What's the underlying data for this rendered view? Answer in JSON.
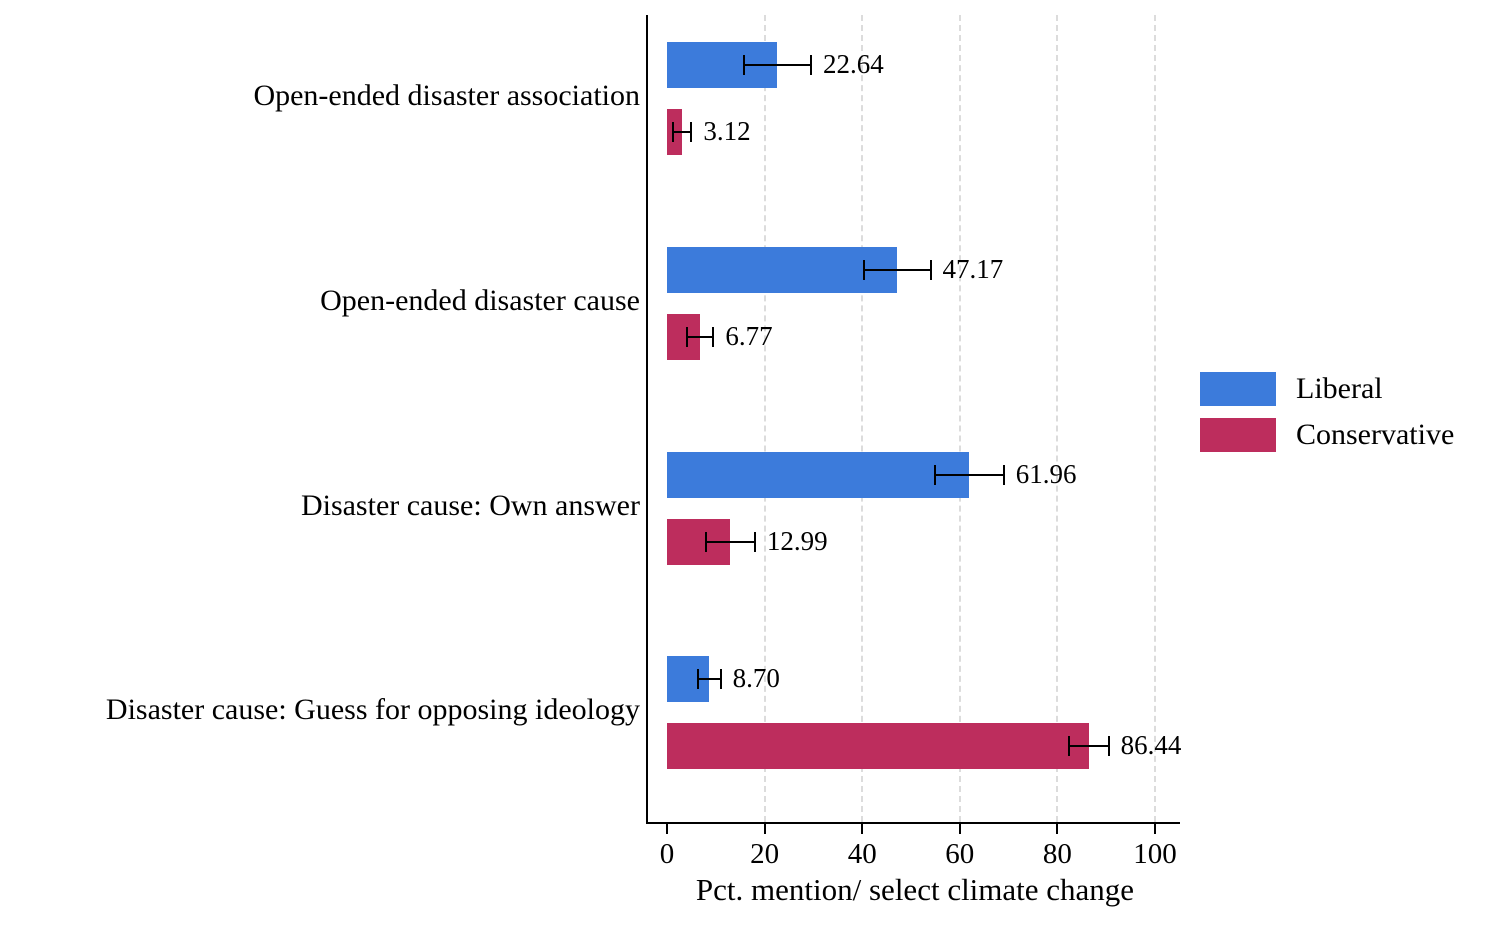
{
  "chart_data": {
    "type": "bar",
    "orientation": "horizontal",
    "title": "",
    "xlabel": "Pct. mention/ select climate change",
    "ylabel": "",
    "xlim": [
      0,
      105
    ],
    "x_ticks": [
      0,
      20,
      40,
      60,
      80,
      100
    ],
    "grid": {
      "vertical_dashed_at_ticks": true,
      "color": "#dcdcdc"
    },
    "legend": {
      "position": "right",
      "entries": [
        {
          "label": "Liberal",
          "color": "#3c7bdb"
        },
        {
          "label": "Conservative",
          "color": "#bd2d5d"
        }
      ]
    },
    "categories": [
      "Open-ended disaster association",
      "Open-ended disaster cause",
      "Disaster cause: Own answer",
      "Disaster cause: Guess for opposing ideology"
    ],
    "series": [
      {
        "name": "Liberal",
        "color": "#3c7bdb",
        "values": [
          22.64,
          47.17,
          61.96,
          8.7
        ],
        "value_labels": [
          "22.64",
          "47.17",
          "61.96",
          "8.70"
        ],
        "ci_upper_est": [
          29.5,
          54.0,
          69.0,
          11.0
        ]
      },
      {
        "name": "Conservative",
        "color": "#bd2d5d",
        "values": [
          3.12,
          6.77,
          12.99,
          86.44
        ],
        "value_labels": [
          "3.12",
          "6.77",
          "12.99",
          "86.44"
        ],
        "ci_upper_est": [
          5.0,
          9.5,
          18.0,
          90.5
        ]
      }
    ]
  }
}
